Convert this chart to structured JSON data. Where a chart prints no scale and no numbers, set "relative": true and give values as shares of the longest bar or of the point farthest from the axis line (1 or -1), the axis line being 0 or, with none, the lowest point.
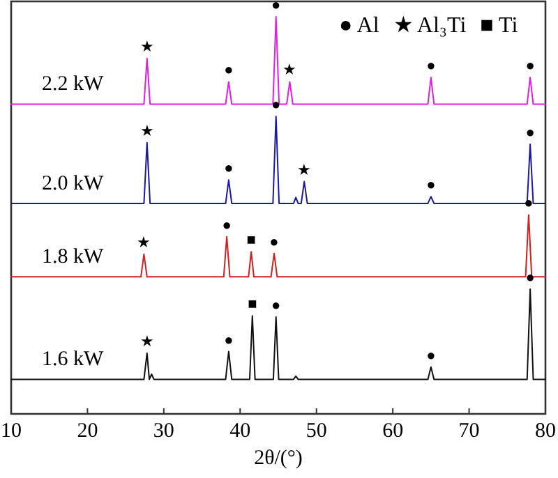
{
  "chart_data": {
    "type": "line",
    "relative": true,
    "xlabel": "2θ/(°)",
    "xlim": [
      10,
      80
    ],
    "xticks": [
      10,
      20,
      30,
      40,
      50,
      60,
      70,
      80
    ],
    "marker": "none",
    "line_style": "solid",
    "grid": false,
    "series": [
      {
        "name": "2.2 kW",
        "color": "#e020e0",
        "x": [
          10,
          27.4,
          27.8,
          28.2,
          38.1,
          38.5,
          38.9,
          44.3,
          44.7,
          45.1,
          46.1,
          46.5,
          46.9,
          64.6,
          65,
          65.4,
          77.6,
          78,
          78.4,
          80
        ],
        "values": [
          0.78,
          0.78,
          0.895,
          0.78,
          0.78,
          0.836,
          0.78,
          0.78,
          1.0,
          0.78,
          0.78,
          0.836,
          0.78,
          0.78,
          0.847,
          0.78,
          0.78,
          0.847,
          0.78,
          0.78
        ]
      },
      {
        "name": "2.0 kW",
        "color": "#1a1aa0",
        "x": [
          10,
          27.4,
          27.8,
          28.2,
          38.1,
          38.5,
          38.9,
          44.3,
          44.7,
          45.1,
          47.0,
          47.3,
          47.6,
          48.0,
          48.4,
          48.8,
          64.6,
          65,
          65.4,
          77.6,
          78,
          78.4,
          80
        ],
        "values": [
          0.53,
          0.53,
          0.683,
          0.53,
          0.53,
          0.589,
          0.53,
          0.53,
          0.749,
          0.53,
          0.53,
          0.545,
          0.53,
          0.53,
          0.585,
          0.53,
          0.53,
          0.547,
          0.53,
          0.53,
          0.679,
          0.53,
          0.53
        ]
      },
      {
        "name": "1.8 kW",
        "color": "#d02020",
        "x": [
          10,
          27.0,
          27.4,
          27.8,
          37.85,
          38.25,
          38.65,
          41.1,
          41.45,
          41.8,
          44.05,
          44.45,
          44.85,
          77.4,
          77.8,
          78.2,
          80
        ],
        "values": [
          0.345,
          0.345,
          0.402,
          0.345,
          0.345,
          0.446,
          0.345,
          0.345,
          0.408,
          0.345,
          0.345,
          0.404,
          0.345,
          0.345,
          0.501,
          0.345,
          0.345
        ]
      },
      {
        "name": "1.6 kW",
        "color": "#111111",
        "x": [
          10,
          27.4,
          27.8,
          28.1,
          28.4,
          28.7,
          38.1,
          38.5,
          38.9,
          41.25,
          41.6,
          41.95,
          44.35,
          44.7,
          45.05,
          47.0,
          47.3,
          47.6,
          64.6,
          65,
          65.4,
          77.6,
          78,
          78.4,
          80
        ],
        "values": [
          0.087,
          0.087,
          0.153,
          0.087,
          0.1,
          0.087,
          0.087,
          0.157,
          0.087,
          0.087,
          0.247,
          0.087,
          0.087,
          0.244,
          0.087,
          0.087,
          0.095,
          0.087,
          0.087,
          0.118,
          0.087,
          0.087,
          0.314,
          0.087,
          0.087
        ]
      }
    ],
    "annotations": [
      "● Al",
      "★ Al₃Ti",
      "■ Ti",
      {
        "text": "★",
        "x": 27.8,
        "y": 0.895
      },
      {
        "text": "●",
        "x": 38.5,
        "y": 0.836
      },
      {
        "text": "●",
        "x": 44.7,
        "y": 1.0
      },
      {
        "text": "★",
        "x": 46.5,
        "y": 0.836
      },
      {
        "text": "●",
        "x": 65,
        "y": 0.847
      },
      {
        "text": "●",
        "x": 78,
        "y": 0.847
      },
      {
        "text": "★",
        "x": 27.8,
        "y": 0.683
      },
      {
        "text": "●",
        "x": 38.5,
        "y": 0.589
      },
      {
        "text": "●",
        "x": 44.7,
        "y": 0.749
      },
      {
        "text": "★",
        "x": 48.4,
        "y": 0.585
      },
      {
        "text": "●",
        "x": 65,
        "y": 0.547
      },
      {
        "text": "●",
        "x": 78,
        "y": 0.679
      },
      {
        "text": "★",
        "x": 27.4,
        "y": 0.402
      },
      {
        "text": "●",
        "x": 38.25,
        "y": 0.446
      },
      {
        "text": "■",
        "x": 41.45,
        "y": 0.408
      },
      {
        "text": "●",
        "x": 44.45,
        "y": 0.404
      },
      {
        "text": "●",
        "x": 77.8,
        "y": 0.501
      },
      {
        "text": "★",
        "x": 27.8,
        "y": 0.153
      },
      {
        "text": "●",
        "x": 38.5,
        "y": 0.157
      },
      {
        "text": "■",
        "x": 41.6,
        "y": 0.247
      },
      {
        "text": "●",
        "x": 44.7,
        "y": 0.244
      },
      {
        "text": "●",
        "x": 65,
        "y": 0.118
      },
      {
        "text": "●",
        "x": 78,
        "y": 0.314
      }
    ]
  }
}
